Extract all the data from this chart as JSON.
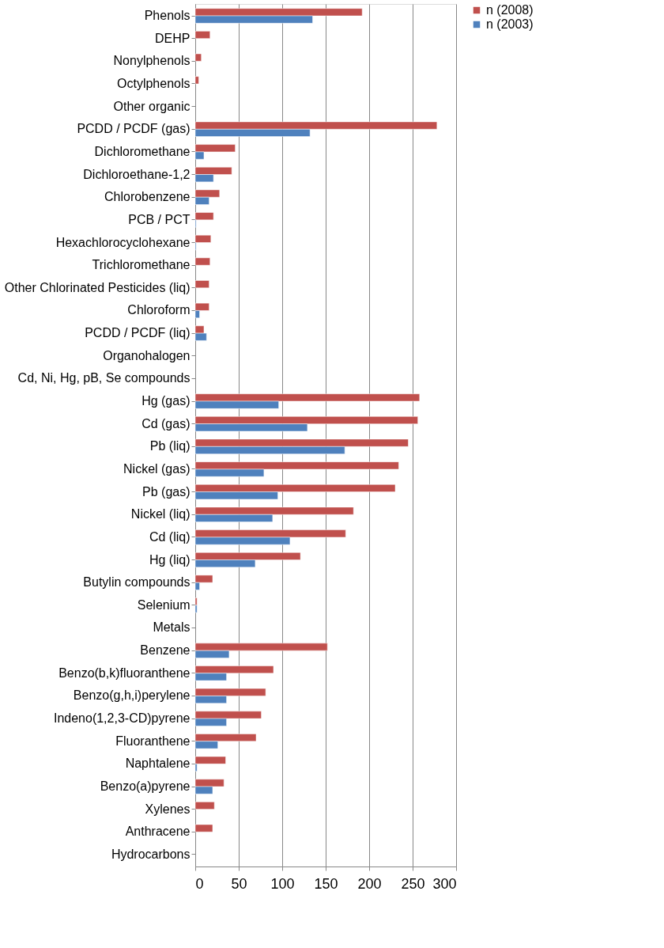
{
  "chart_data": {
    "type": "bar",
    "orientation": "horizontal",
    "categories": [
      "Phenols",
      "DEHP",
      "Nonylphenols",
      "Octylphenols",
      "Other organic",
      "PCDD / PCDF (gas)",
      "Dichloromethane",
      "Dichloroethane-1,2",
      "Chlorobenzene",
      "PCB / PCT",
      "Hexachlorocyclohexane",
      "Trichloromethane",
      "Other Chlorinated Pesticides (liq)",
      "Chloroform",
      "PCDD / PCDF (liq)",
      "Organohalogen",
      "Cd, Ni, Hg, pB, Se compounds",
      "Hg (gas)",
      "Cd (gas)",
      "Pb (liq)",
      "Nickel (gas)",
      "Pb (gas)",
      "Nickel (liq)",
      "Cd (liq)",
      "Hg (liq)",
      "Butylin compounds",
      "Selenium",
      "Metals",
      "Benzene",
      "Benzo(b,k)fluoranthene",
      "Benzo(g,h,i)perylene",
      "Indeno(1,2,3-CD)pyrene",
      "Fluoranthene",
      "Naphtalene",
      "Benzo(a)pyrene",
      "Xylenes",
      "Anthracene",
      "Hydrocarbons"
    ],
    "series": [
      {
        "name": "n (2008)",
        "color": "#c0504d",
        "values": [
          192,
          17,
          7,
          4,
          null,
          278,
          46,
          42,
          28,
          21,
          18,
          17,
          16,
          16,
          10,
          null,
          null,
          258,
          256,
          245,
          234,
          230,
          182,
          173,
          121,
          20,
          2,
          null,
          152,
          90,
          81,
          76,
          70,
          35,
          33,
          22,
          20,
          null
        ]
      },
      {
        "name": "n (2003)",
        "color": "#4f81bd",
        "values": [
          135,
          null,
          null,
          null,
          null,
          132,
          10,
          21,
          16,
          1,
          1,
          null,
          null,
          5,
          13,
          null,
          null,
          96,
          129,
          172,
          79,
          95,
          89,
          109,
          69,
          5,
          2,
          null,
          39,
          36,
          36,
          36,
          26,
          2,
          20,
          null,
          null,
          null
        ]
      }
    ],
    "xlim": [
      0,
      300
    ],
    "xticks": [
      0,
      50,
      100,
      150,
      200,
      250,
      300
    ],
    "grid": "x",
    "legend": "right"
  }
}
